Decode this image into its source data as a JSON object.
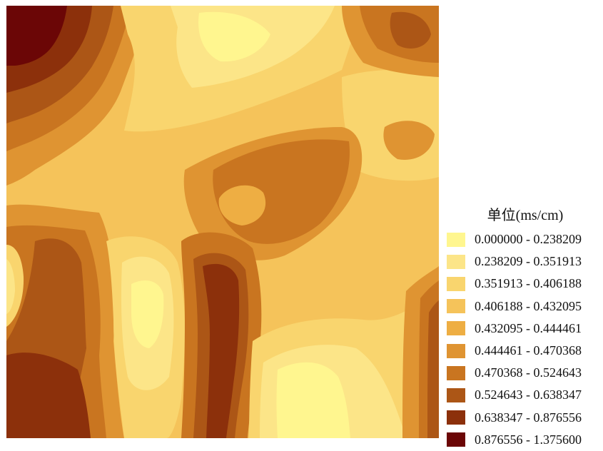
{
  "legend": {
    "title": "单位(ms/cm)",
    "classes": [
      {
        "range": "0.000000 - 0.238209",
        "color": "#FFF68F"
      },
      {
        "range": "0.238209 - 0.351913",
        "color": "#FCE588"
      },
      {
        "range": "0.351913 - 0.406188",
        "color": "#F9D56E"
      },
      {
        "range": "0.406188 - 0.432095",
        "color": "#F5C35A"
      },
      {
        "range": "0.432095 - 0.444461",
        "color": "#EEAE43"
      },
      {
        "range": "0.444461 - 0.470368",
        "color": "#DF9432"
      },
      {
        "range": "0.470368 - 0.524643",
        "color": "#C97520"
      },
      {
        "range": "0.524643 - 0.638347",
        "color": "#AC5616"
      },
      {
        "range": "0.638347 - 0.876556",
        "color": "#8C300B"
      },
      {
        "range": "0.876556 - 1.375600",
        "color": "#6B0606"
      }
    ]
  }
}
